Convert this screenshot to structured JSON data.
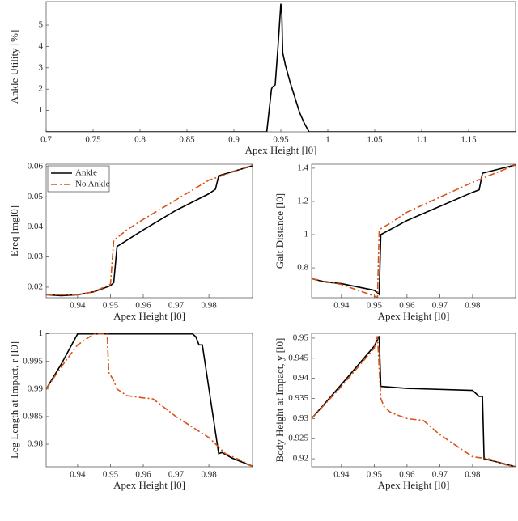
{
  "chart_data": [
    {
      "type": "line",
      "xlabel": "Apex Height [l0]",
      "ylabel": "Ankle Utility [%]",
      "xlim": [
        0.7,
        1.2
      ],
      "xticks": [
        0.7,
        0.75,
        0.8,
        0.85,
        0.9,
        0.95,
        1,
        1.05,
        1.1,
        1.15
      ],
      "ylim": [
        0,
        6.1
      ],
      "yticks": [
        1,
        2,
        3,
        4,
        5
      ],
      "series": [
        {
          "color": "#000000",
          "x": [
            0.7,
            0.935,
            0.94,
            0.941,
            0.944,
            0.947,
            0.95,
            0.951,
            0.952,
            0.955,
            0.96,
            0.965,
            0.97,
            0.975,
            0.98,
            1.2
          ],
          "values": [
            0,
            0,
            2.0,
            2.1,
            2.2,
            4.0,
            6.0,
            5.5,
            3.7,
            3.1,
            2.3,
            1.6,
            0.9,
            0.4,
            0,
            0
          ]
        }
      ]
    },
    {
      "type": "line",
      "xlabel": "Apex Height [l0]",
      "ylabel": "Ereq [mgl0]",
      "xlim": [
        0.9304,
        0.9933
      ],
      "xticks": [
        0.94,
        0.95,
        0.96,
        0.97,
        0.98
      ],
      "ylim": [
        0.0165,
        0.0608
      ],
      "yticks": [
        0.02,
        0.03,
        0.04,
        0.05,
        0.06
      ],
      "legend": "upper left",
      "series": [
        {
          "name": "Ankle",
          "color": "#000000",
          "dash": "none",
          "x": [
            0.9304,
            0.935,
            0.94,
            0.945,
            0.95,
            0.951,
            0.952,
            0.96,
            0.97,
            0.98,
            0.982,
            0.983,
            0.9933
          ],
          "values": [
            0.0175,
            0.0172,
            0.0175,
            0.0185,
            0.0205,
            0.0215,
            0.0335,
            0.039,
            0.0455,
            0.051,
            0.0525,
            0.057,
            0.0603
          ]
        },
        {
          "name": "No Ankle",
          "color": "#d95319",
          "dash": "8 3 2 3",
          "x": [
            0.9304,
            0.94,
            0.945,
            0.95,
            0.951,
            0.955,
            0.96,
            0.97,
            0.98,
            0.9933
          ],
          "values": [
            0.0175,
            0.0175,
            0.0185,
            0.021,
            0.0355,
            0.039,
            0.0425,
            0.049,
            0.0555,
            0.0605
          ]
        }
      ]
    },
    {
      "type": "line",
      "xlabel": "Apex Height [l0]",
      "ylabel": "Gait Distance [l0]",
      "xlim": [
        0.9309,
        0.9931
      ],
      "xticks": [
        0.94,
        0.95,
        0.96,
        0.97,
        0.98
      ],
      "ylim": [
        0.62,
        1.424
      ],
      "yticks": [
        0.8,
        1,
        1.2,
        1.4
      ],
      "series": [
        {
          "color": "#000000",
          "dash": "none",
          "x": [
            0.9309,
            0.935,
            0.94,
            0.945,
            0.95,
            0.951,
            0.9515,
            0.952,
            0.96,
            0.97,
            0.98,
            0.982,
            0.983,
            0.9931
          ],
          "values": [
            0.735,
            0.715,
            0.705,
            0.685,
            0.665,
            0.65,
            0.64,
            1.0,
            1.085,
            1.17,
            1.255,
            1.27,
            1.37,
            1.42
          ]
        },
        {
          "color": "#d95319",
          "dash": "8 3 2 3",
          "x": [
            0.9309,
            0.94,
            0.95,
            0.951,
            0.9515,
            0.955,
            0.96,
            0.97,
            0.98,
            0.9931
          ],
          "values": [
            0.735,
            0.7,
            0.63,
            0.62,
            1.03,
            1.07,
            1.135,
            1.225,
            1.315,
            1.42
          ]
        }
      ]
    },
    {
      "type": "line",
      "xlabel": "Apex Height [l0]",
      "ylabel": "Leg Length at Impact, r [l0]",
      "xlim": [
        0.9304,
        0.9933
      ],
      "xticks": [
        0.94,
        0.95,
        0.96,
        0.97,
        0.98
      ],
      "ylim": [
        0.9759,
        1.0001
      ],
      "yticks": [
        0.98,
        0.985,
        0.99,
        0.995,
        1
      ],
      "series": [
        {
          "color": "#000000",
          "dash": "none",
          "x": [
            0.9304,
            0.935,
            0.94,
            0.975,
            0.976,
            0.977,
            0.978,
            0.983,
            0.984,
            0.987,
            0.9933
          ],
          "values": [
            0.99,
            0.9945,
            1.0,
            1.0,
            0.9995,
            0.998,
            0.998,
            0.9783,
            0.9785,
            0.9775,
            0.976
          ]
        },
        {
          "color": "#d95319",
          "dash": "8 3 2 3",
          "x": [
            0.9304,
            0.935,
            0.94,
            0.945,
            0.949,
            0.9495,
            0.95,
            0.951,
            0.952,
            0.955,
            0.96,
            0.963,
            0.97,
            0.98,
            0.985,
            0.99,
            0.9933
          ],
          "values": [
            0.99,
            0.994,
            0.998,
            1.0,
            1.0,
            0.993,
            0.9925,
            0.9915,
            0.99,
            0.9888,
            0.9884,
            0.9882,
            0.985,
            0.9812,
            0.9783,
            0.977,
            0.976
          ]
        }
      ]
    },
    {
      "type": "line",
      "xlabel": "Apex Height [l0]",
      "ylabel": "Body Height at Impact, y [l0]",
      "xlim": [
        0.9309,
        0.9931
      ],
      "xticks": [
        0.94,
        0.95,
        0.96,
        0.97,
        0.98
      ],
      "ylim": [
        0.918,
        0.9512
      ],
      "yticks": [
        0.92,
        0.925,
        0.93,
        0.935,
        0.94,
        0.945,
        0.95
      ],
      "series": [
        {
          "color": "#000000",
          "dash": "none",
          "x": [
            0.9309,
            0.94,
            0.95,
            0.9515,
            0.952,
            0.96,
            0.98,
            0.982,
            0.983,
            0.9835,
            0.986,
            0.9931
          ],
          "values": [
            0.93,
            0.9385,
            0.948,
            0.9505,
            0.938,
            0.9375,
            0.937,
            0.9355,
            0.9355,
            0.92,
            0.9195,
            0.918
          ]
        },
        {
          "color": "#d95319",
          "dash": "8 3 2 3",
          "x": [
            0.9309,
            0.94,
            0.95,
            0.951,
            0.952,
            0.953,
            0.955,
            0.96,
            0.965,
            0.97,
            0.98,
            0.985,
            0.99,
            0.9931
          ],
          "values": [
            0.93,
            0.938,
            0.9475,
            0.9505,
            0.935,
            0.933,
            0.9315,
            0.93,
            0.9295,
            0.926,
            0.9205,
            0.92,
            0.9185,
            0.918
          ]
        }
      ]
    }
  ]
}
